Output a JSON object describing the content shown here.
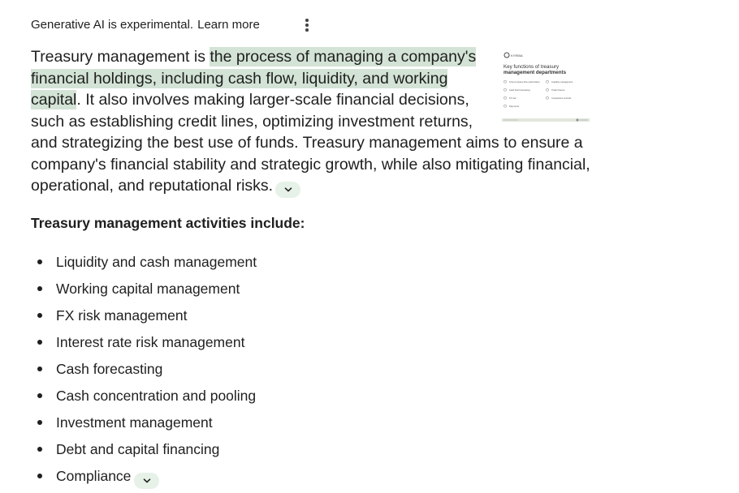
{
  "header": {
    "notice": "Generative AI is experimental.",
    "learn_more": "Learn more",
    "menu_icon": "more-vert-icon"
  },
  "overview": {
    "intro": "Treasury management is ",
    "highlight": "the process of managing a company's financial holdings, including cash flow, liquidity, and working capital",
    "rest": ". It also involves making larger-scale finan­cial decisions, such as establishing credit lines, optimizing in­vestment returns, and strategizing the best use of funds. Treasury manage­ment aims to ensure a company's financial stability and strategic growth, while also mitigating financial, operational, and reputational risks.",
    "expand_icon": "chevron-down-icon"
  },
  "thumbnail": {
    "brand": "KYRIBA",
    "title": "Key functions of treasury management departments",
    "items_left": [
      "Intra-company flow optimization",
      "Cash flow forecasting",
      "FX risk",
      "Payments"
    ],
    "items_right": [
      "Liquidity management",
      "Trade finance",
      "Compliance controls"
    ]
  },
  "activities": {
    "heading": "Treasury management activities include:",
    "items": [
      "Liquidity and cash management",
      "Working capital management",
      "FX risk management",
      "Interest rate risk management",
      "Cash forecasting",
      "Cash concentration and pooling",
      "Investment management",
      "Debt and capital financing",
      "Compliance"
    ],
    "expand_icon": "chevron-down-icon"
  },
  "colors": {
    "highlight": "#d3e3d5",
    "chip": "#e6f1e7",
    "text": "#1f1f1f",
    "icon": "#444746"
  }
}
